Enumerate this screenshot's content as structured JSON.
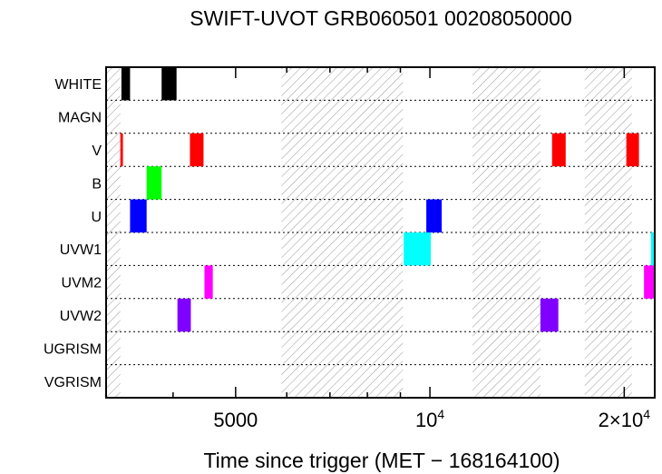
{
  "chart_data": {
    "type": "timeline",
    "title": "SWIFT-UVOT GRB060501 00208050000",
    "xlabel": "Time since trigger (MET − 168164100)",
    "ylabel": "",
    "xscale": "log",
    "xlim": [
      3150,
      22300
    ],
    "x_ticks": [
      {
        "value": 5000,
        "label": "5000"
      },
      {
        "value": 10000,
        "label": "10",
        "sup": "4"
      },
      {
        "value": 20000,
        "label": "2×10",
        "sup": "4"
      }
    ],
    "x_minor_ticks": [
      4000,
      6000,
      7000,
      8000,
      9000
    ],
    "categories": [
      "WHITE",
      "MAGN",
      "V",
      "B",
      "U",
      "UVW1",
      "UVM2",
      "UVW2",
      "UGRISM",
      "VGRISM"
    ],
    "hatched_intervals": [
      [
        3150,
        3314
      ],
      [
        5890,
        9080
      ],
      [
        11640,
        14830
      ],
      [
        17370,
        20550
      ]
    ],
    "series": [
      {
        "name": "WHITE",
        "color": "#000000",
        "intervals": [
          [
            3327,
            3431
          ],
          [
            3840,
            4050
          ]
        ]
      },
      {
        "name": "MAGN",
        "color": "#000000",
        "intervals": []
      },
      {
        "name": "V",
        "color": "#ff0000",
        "intervals": [
          [
            3314,
            3345
          ],
          [
            4248,
            4459
          ],
          [
            15460,
            16230
          ],
          [
            20150,
            21080
          ]
        ]
      },
      {
        "name": "B",
        "color": "#00ff00",
        "intervals": [
          [
            3640,
            3840
          ]
        ]
      },
      {
        "name": "U",
        "color": "#0000ff",
        "intervals": [
          [
            3431,
            3640
          ],
          [
            9872,
            10430
          ]
        ]
      },
      {
        "name": "UVW1",
        "color": "#00ffff",
        "intervals": [
          [
            9107,
            10030
          ],
          [
            22000,
            22300
          ]
        ]
      },
      {
        "name": "UVM2",
        "color": "#ff00ff",
        "intervals": [
          [
            4474,
            4609
          ],
          [
            21460,
            22300
          ]
        ]
      },
      {
        "name": "UVW2",
        "color": "#8000ff",
        "intervals": [
          [
            4063,
            4262
          ],
          [
            14830,
            15810
          ]
        ]
      },
      {
        "name": "UGRISM",
        "color": "#000000",
        "intervals": []
      },
      {
        "name": "VGRISM",
        "color": "#000000",
        "intervals": []
      }
    ],
    "grid": "dotted row separators"
  }
}
